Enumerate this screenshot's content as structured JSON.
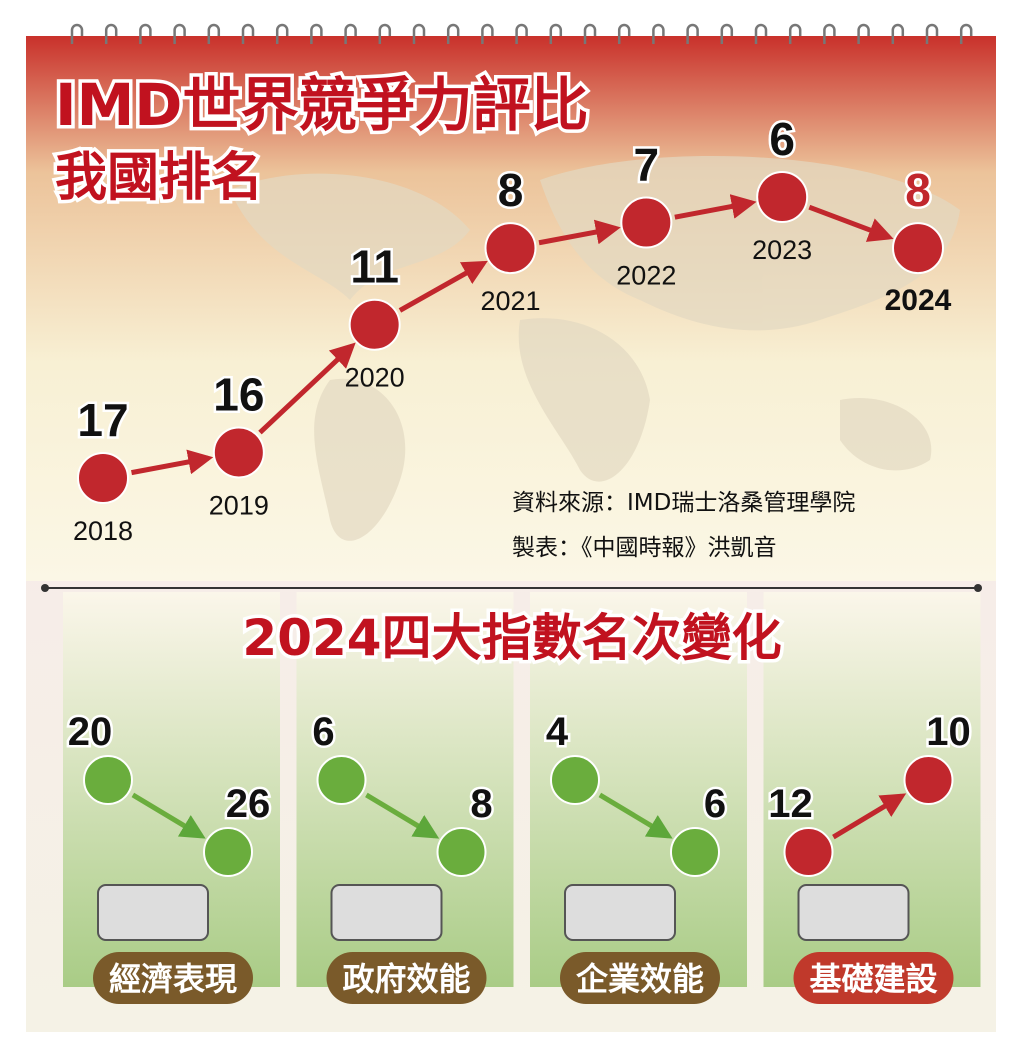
{
  "chart_data": [
    {
      "type": "line",
      "title": "IMD世界競爭力評比",
      "subtitle": "我國排名",
      "x": [
        "2018",
        "2019",
        "2020",
        "2021",
        "2022",
        "2023",
        "2024"
      ],
      "values": [
        17,
        16,
        11,
        8,
        7,
        6,
        8
      ],
      "color": "#c1272d",
      "source": "資料來源：IMD瑞士洛桑管理學院",
      "credit": "製表：《中國時報》洪凱音"
    },
    {
      "type": "slope",
      "title": "2024四大指數名次變化",
      "panels": [
        {
          "name": "經濟表現",
          "values": [
            20,
            26
          ],
          "color": "#6aad3d"
        },
        {
          "name": "政府效能",
          "values": [
            6,
            8
          ],
          "color": "#6aad3d"
        },
        {
          "name": "企業效能",
          "values": [
            4,
            6
          ],
          "color": "#6aad3d"
        },
        {
          "name": "基礎建設",
          "values": [
            12,
            10
          ],
          "color": "#c1272d"
        }
      ]
    }
  ]
}
